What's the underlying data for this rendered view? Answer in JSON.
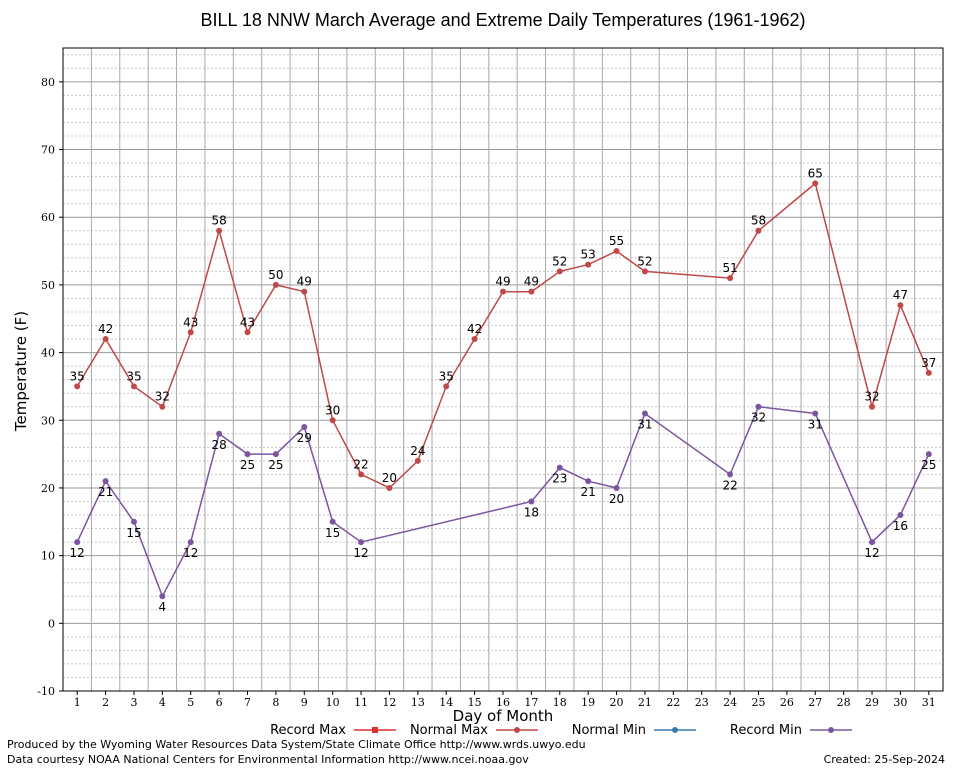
{
  "chart_data": {
    "type": "line",
    "title": "BILL 18 NNW March Average and Extreme Daily Temperatures (1961-1962)",
    "xlabel": "Day of Month",
    "ylabel": "Temperature (F)",
    "ylim": [
      -10,
      85
    ],
    "y_ticks": [
      -10,
      0,
      10,
      20,
      30,
      40,
      50,
      60,
      70,
      80
    ],
    "x_ticks": [
      1,
      2,
      3,
      4,
      5,
      6,
      7,
      8,
      9,
      10,
      11,
      12,
      13,
      14,
      15,
      16,
      17,
      18,
      19,
      20,
      21,
      22,
      23,
      24,
      25,
      26,
      27,
      28,
      29,
      30,
      31
    ],
    "xlim": [
      0.5,
      31.5
    ],
    "grid": true,
    "legend_position": "bottom",
    "series": [
      {
        "name": "Record Max",
        "color": "#e03030",
        "marker": "square",
        "points": []
      },
      {
        "name": "Normal Max",
        "color": "#c04848",
        "marker": "circle",
        "points": [
          [
            1,
            35
          ],
          [
            2,
            42
          ],
          [
            3,
            35
          ],
          [
            4,
            32
          ],
          [
            5,
            43
          ],
          [
            6,
            58
          ],
          [
            7,
            43
          ],
          [
            8,
            50
          ],
          [
            9,
            49
          ],
          [
            10,
            30
          ],
          [
            11,
            22
          ],
          [
            12,
            20
          ],
          [
            13,
            24
          ],
          [
            14,
            35
          ],
          [
            15,
            42
          ],
          [
            16,
            49
          ],
          [
            17,
            49
          ],
          [
            18,
            52
          ],
          [
            19,
            53
          ],
          [
            20,
            55
          ],
          [
            21,
            52
          ],
          [
            24,
            51
          ],
          [
            25,
            58
          ],
          [
            27,
            65
          ],
          [
            29,
            32
          ],
          [
            30,
            47
          ],
          [
            31,
            37
          ]
        ],
        "labels_position": "above"
      },
      {
        "name": "Normal Min",
        "color": "#3a7ab0",
        "marker": "circle",
        "points": []
      },
      {
        "name": "Record Min",
        "color": "#7b56a0",
        "marker": "circle",
        "points": [
          [
            1,
            12
          ],
          [
            2,
            21
          ],
          [
            3,
            15
          ],
          [
            4,
            4
          ],
          [
            5,
            12
          ],
          [
            6,
            28
          ],
          [
            7,
            25
          ],
          [
            8,
            25
          ],
          [
            9,
            29
          ],
          [
            10,
            15
          ],
          [
            11,
            12
          ],
          [
            17,
            18
          ],
          [
            18,
            23
          ],
          [
            19,
            21
          ],
          [
            20,
            20
          ],
          [
            21,
            31
          ],
          [
            24,
            22
          ],
          [
            25,
            32
          ],
          [
            27,
            31
          ],
          [
            29,
            12
          ],
          [
            30,
            16
          ],
          [
            31,
            25
          ]
        ],
        "labels_position": "below"
      }
    ]
  },
  "footer": {
    "produced_by": "Produced by the Wyoming Water Resources Data System/State Climate Office http://www.wrds.uwyo.edu",
    "courtesy": "Data courtesy NOAA National Centers for Environmental Information http://www.ncei.noaa.gov",
    "created": "Created:  25-Sep-2024"
  }
}
